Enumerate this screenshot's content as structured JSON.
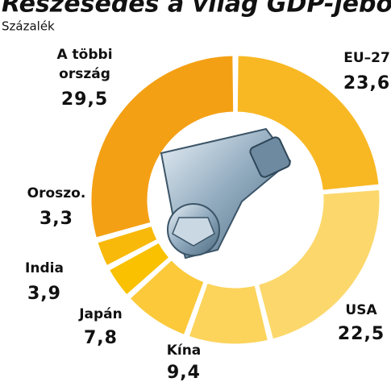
{
  "chart_data": {
    "type": "donut",
    "title": "Részesedés a világ GDP-jéből",
    "subtitle": "Százalék",
    "categories": [
      "EU–27",
      "USA",
      "Kína",
      "Japán",
      "India",
      "Oroszo.",
      "A többi ország"
    ],
    "values": [
      23.6,
      22.5,
      9.4,
      7.8,
      3.9,
      3.3,
      29.5
    ],
    "value_labels": [
      "23,6",
      "22,5",
      "9,4",
      "7,8",
      "3,9",
      "3,3",
      "29,5"
    ],
    "colors": [
      "#f8b824",
      "#fcd86c",
      "#fcd45c",
      "#fbc93a",
      "#f9c100",
      "#f8b90a",
      "#f4a015"
    ]
  }
}
